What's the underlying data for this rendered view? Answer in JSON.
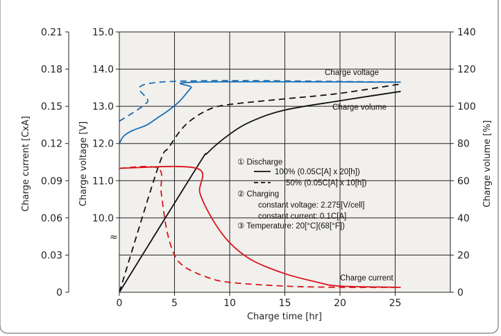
{
  "chart_data": {
    "type": "line",
    "title": "",
    "xlabel": "Charge time [hr]",
    "ylabel_left": "Charge current [CxA]",
    "ylabel_voltage": "Charge voltage [V]",
    "ylabel_right": "Charge volume [%]",
    "xlim": [
      0,
      30
    ],
    "x_ticks": [
      "0",
      "5",
      "10",
      "15",
      "20",
      "25"
    ],
    "current_ticks": [
      "0",
      "0.03",
      "0.06",
      "0.09",
      "0.12",
      "0.15",
      "0.18",
      "0.21"
    ],
    "voltage_ticks": [
      "10.0",
      "11.0",
      "12.0",
      "13.0",
      "14.0",
      "15.0"
    ],
    "volume_ticks": [
      "0",
      "20",
      "40",
      "60",
      "80",
      "100",
      "120",
      "140"
    ],
    "axis_break_symbol": "≈",
    "grid": true,
    "series_labels": {
      "charge_voltage": "Charge voltage",
      "charge_volume": "Charge volume",
      "charge_current": "Charge current"
    },
    "annotations": [
      "① Discharge",
      "100% (0.05C[A] x 20[h])",
      "50% (0.05C[A] x 10[h])",
      "② Charging",
      "constant voltage: 2.275[V/cell]",
      "constant current: 0.1C[A]",
      "③ Temperature: 20[°C](68[°F])"
    ],
    "series": [
      {
        "quantity": "Charge voltage",
        "discharge": "100%",
        "axis": "voltage",
        "style": "solid",
        "color": "#1a6fb5",
        "x": [
          0,
          0.4,
          1.2,
          2.5,
          3.5,
          4.5,
          5.5,
          6.5,
          7,
          25.5
        ],
        "y": [
          12.0,
          12.2,
          12.35,
          12.5,
          12.7,
          12.9,
          13.15,
          13.5,
          13.65,
          13.65
        ]
      },
      {
        "quantity": "Charge voltage",
        "discharge": "50%",
        "axis": "voltage",
        "style": "dashed",
        "color": "#1a6fb5",
        "x": [
          0,
          2.5,
          3.7,
          25.5
        ],
        "y": [
          12.6,
          13.1,
          13.65,
          13.65
        ]
      },
      {
        "quantity": "Charge volume",
        "discharge": "100%",
        "axis": "volume",
        "style": "solid",
        "color": "#111111",
        "x": [
          0,
          7,
          8,
          10,
          12,
          15,
          20,
          25.5
        ],
        "y": [
          0,
          67,
          75,
          85,
          92,
          98,
          103,
          108
        ]
      },
      {
        "quantity": "Charge volume",
        "discharge": "50%",
        "axis": "volume",
        "style": "dashed",
        "color": "#111111",
        "x": [
          0,
          3.5,
          4.5,
          6,
          8,
          10,
          15,
          20,
          25.5
        ],
        "y": [
          0,
          67,
          78,
          90,
          98,
          101,
          104,
          107,
          112
        ]
      },
      {
        "quantity": "Charge current",
        "discharge": "100%",
        "axis": "current",
        "style": "solid",
        "color": "#d8131b",
        "x": [
          0,
          7,
          7.3,
          8.5,
          10,
          12,
          15,
          18,
          20,
          25.5
        ],
        "y": [
          0.1,
          0.1,
          0.08,
          0.058,
          0.04,
          0.026,
          0.015,
          0.008,
          0.005,
          0.004
        ]
      },
      {
        "quantity": "Charge current",
        "discharge": "50%",
        "axis": "current",
        "style": "dashed",
        "color": "#d8131b",
        "x": [
          0,
          3.5,
          3.8,
          4.3,
          5,
          6,
          8,
          10,
          15,
          20,
          25.5
        ],
        "y": [
          0.1,
          0.1,
          0.08,
          0.05,
          0.03,
          0.02,
          0.012,
          0.008,
          0.005,
          0.004,
          0.004
        ]
      }
    ]
  }
}
